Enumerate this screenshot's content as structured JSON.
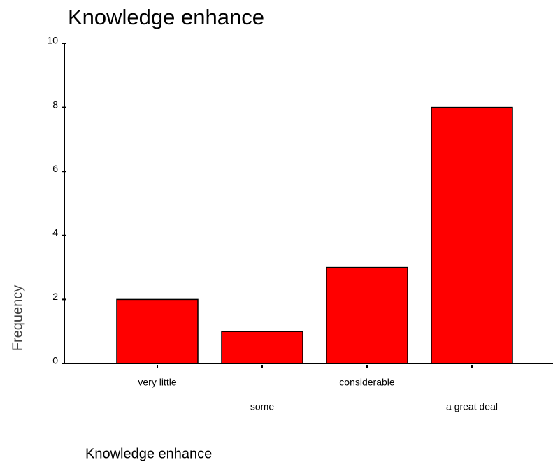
{
  "chart_data": {
    "type": "bar",
    "title": "Knowledge enhance",
    "xlabel": "Knowledge enhance",
    "ylabel": "Frequency",
    "categories": [
      "very little",
      "some",
      "considerable",
      "a great deal"
    ],
    "values": [
      2,
      1,
      3,
      8
    ],
    "color": "#ff0000",
    "ylim": [
      0,
      10
    ],
    "yticks": [
      0,
      2,
      4,
      6,
      8,
      10
    ],
    "grid": false
  }
}
